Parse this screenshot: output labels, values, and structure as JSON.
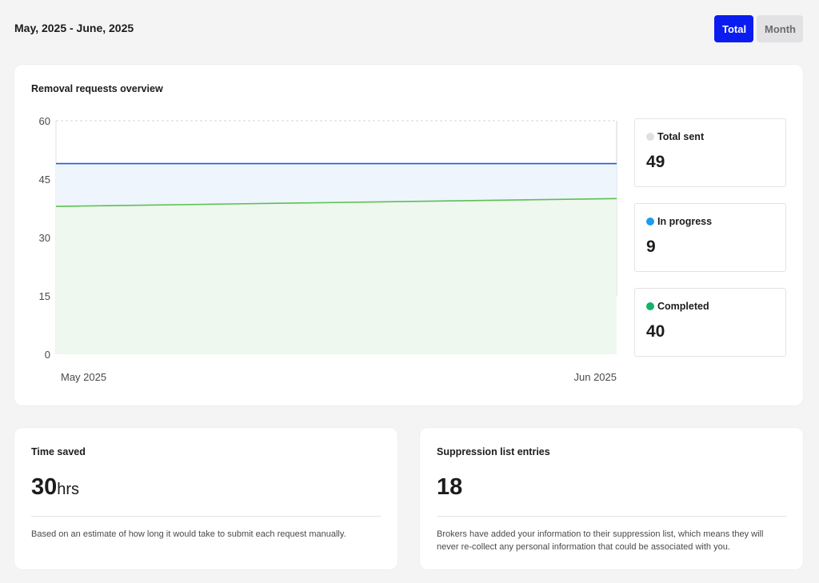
{
  "header": {
    "date_range": "May, 2025 - June, 2025",
    "toggle": {
      "total_label": "Total",
      "month_label": "Month",
      "selected": "Total"
    }
  },
  "overview": {
    "title": "Removal requests overview",
    "stats": [
      {
        "label": "Total sent",
        "value": "49",
        "color": "#e0e0e2"
      },
      {
        "label": "In progress",
        "value": "9",
        "color": "#1d9bf0"
      },
      {
        "label": "Completed",
        "value": "40",
        "color": "#12b565"
      }
    ]
  },
  "chart_data": {
    "type": "area",
    "x": [
      "May 2025",
      "Jun 2025"
    ],
    "yticks": [
      "0",
      "15",
      "30",
      "45",
      "60"
    ],
    "ylim": [
      0,
      60
    ],
    "series": [
      {
        "name": "Total sent",
        "values": [
          49,
          49
        ],
        "color": "#1a5fd0",
        "fill": "#eef5fd"
      },
      {
        "name": "Completed",
        "values": [
          38,
          40
        ],
        "color": "#5cbf52",
        "fill": "#eef8ee"
      }
    ],
    "grid": true
  },
  "time_saved": {
    "title": "Time saved",
    "value": "30",
    "unit": "hrs",
    "note": "Based on an estimate of how long it would take to submit each request manually."
  },
  "suppression": {
    "title": "Suppression list entries",
    "value": "18",
    "note": "Brokers have added your information to their suppression list, which means they will never re-collect any personal information that could be associated with you."
  }
}
